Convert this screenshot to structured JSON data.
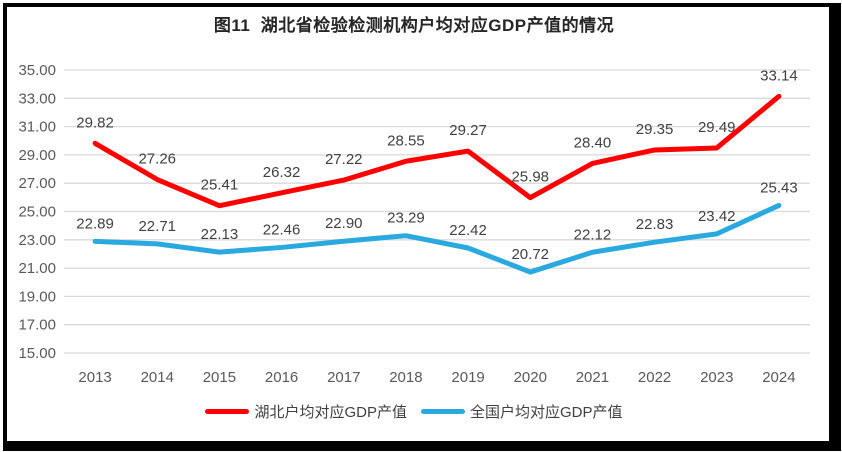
{
  "chart_data": {
    "type": "line",
    "title": "图11  湖北省检验检测机构户均对应GDP产值的情况",
    "categories": [
      "2013",
      "2014",
      "2015",
      "2016",
      "2017",
      "2018",
      "2019",
      "2020",
      "2021",
      "2022",
      "2023",
      "2024"
    ],
    "series": [
      {
        "id": "hubei",
        "name": "湖北户均对应GDP产值",
        "color": "#FF0000",
        "values": [
          29.82,
          27.26,
          25.41,
          26.32,
          27.22,
          28.55,
          29.27,
          25.98,
          28.4,
          29.35,
          29.49,
          33.14
        ]
      },
      {
        "id": "national",
        "name": "全国户均对应GDP产值",
        "color": "#29A9E0",
        "values": [
          22.89,
          22.71,
          22.13,
          22.46,
          22.9,
          23.29,
          22.42,
          20.72,
          22.12,
          22.83,
          23.42,
          25.43
        ]
      }
    ],
    "ylim": [
      15,
      35
    ],
    "ytick_step": 2,
    "ytick_labels": [
      "15.00",
      "17.00",
      "19.00",
      "21.00",
      "23.00",
      "25.00",
      "27.00",
      "29.00",
      "31.00",
      "33.00",
      "35.00"
    ],
    "grid": true,
    "data_labels": true,
    "label_decimals": 2,
    "legend_position": "bottom"
  },
  "style": {
    "grid_color": "#D9D9D9",
    "tick_text_color": "#595959",
    "data_label_color": "#404040",
    "title_color": "#262626",
    "frame_color": "#000000",
    "background": "#FFFFFF"
  }
}
